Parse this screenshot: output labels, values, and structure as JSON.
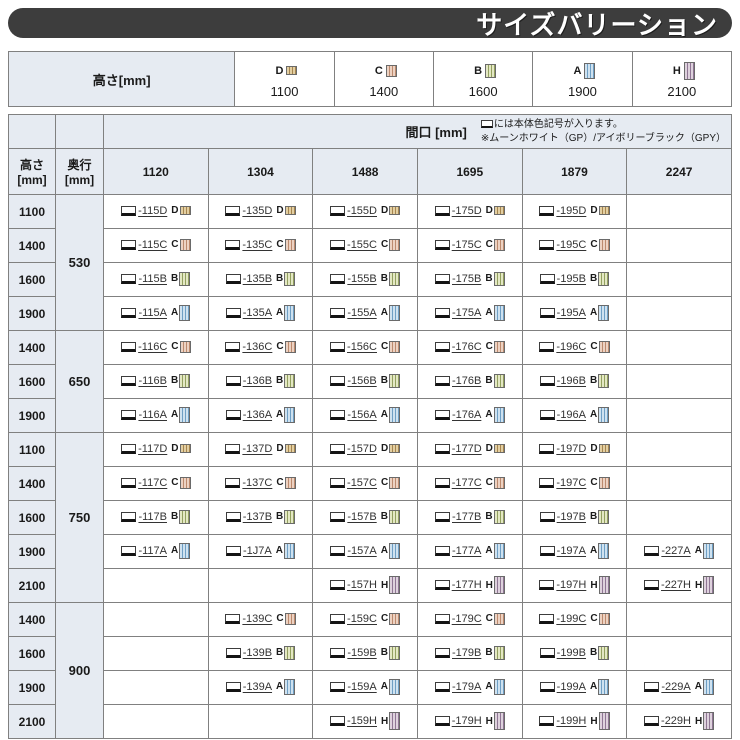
{
  "banner": {
    "title": "サイズバリーション"
  },
  "legend": {
    "label": "高さ[mm]",
    "items": [
      {
        "letter": "D",
        "value": "1100"
      },
      {
        "letter": "C",
        "value": "1400"
      },
      {
        "letter": "B",
        "value": "1600"
      },
      {
        "letter": "A",
        "value": "1900"
      },
      {
        "letter": "H",
        "value": "2100"
      }
    ]
  },
  "icon_colors": {
    "D": {
      "base": "#e3cfa2",
      "stripe": "#a5854f"
    },
    "C": {
      "base": "#edd2c2",
      "stripe": "#bc8a6e"
    },
    "B": {
      "base": "#e4e8c4",
      "stripe": "#93a060"
    },
    "A": {
      "base": "#cfe2f0",
      "stripe": "#6f9fc4"
    },
    "H": {
      "base": "#ded2dd",
      "stripe": "#8f7694"
    }
  },
  "main_table": {
    "maguchi_label": "間口 [mm]",
    "note_line1": "には本体色記号が入ります。",
    "note_line2": "※ムーンホワイト（GP）/アイボリーブラック（GPY）",
    "col_height": "高さ[mm]",
    "col_depth": "奥行[mm]",
    "widths": [
      "1120",
      "1304",
      "1488",
      "1695",
      "1879",
      "2247"
    ],
    "groups": [
      {
        "depth": "530",
        "rows": [
          {
            "height": "1100",
            "type": "D",
            "models": [
              "-115D",
              "-135D",
              "-155D",
              "-175D",
              "-195D",
              null
            ]
          },
          {
            "height": "1400",
            "type": "C",
            "models": [
              "-115C",
              "-135C",
              "-155C",
              "-175C",
              "-195C",
              null
            ]
          },
          {
            "height": "1600",
            "type": "B",
            "models": [
              "-115B",
              "-135B",
              "-155B",
              "-175B",
              "-195B",
              null
            ]
          },
          {
            "height": "1900",
            "type": "A",
            "models": [
              "-115A",
              "-135A",
              "-155A",
              "-175A",
              "-195A",
              null
            ]
          }
        ]
      },
      {
        "depth": "650",
        "rows": [
          {
            "height": "1400",
            "type": "C",
            "models": [
              "-116C",
              "-136C",
              "-156C",
              "-176C",
              "-196C",
              null
            ]
          },
          {
            "height": "1600",
            "type": "B",
            "models": [
              "-116B",
              "-136B",
              "-156B",
              "-176B",
              "-196B",
              null
            ]
          },
          {
            "height": "1900",
            "type": "A",
            "models": [
              "-116A",
              "-136A",
              "-156A",
              "-176A",
              "-196A",
              null
            ]
          }
        ]
      },
      {
        "depth": "750",
        "rows": [
          {
            "height": "1100",
            "type": "D",
            "models": [
              "-117D",
              "-137D",
              "-157D",
              "-177D",
              "-197D",
              null
            ]
          },
          {
            "height": "1400",
            "type": "C",
            "models": [
              "-117C",
              "-137C",
              "-157C",
              "-177C",
              "-197C",
              null
            ]
          },
          {
            "height": "1600",
            "type": "B",
            "models": [
              "-117B",
              "-137B",
              "-157B",
              "-177B",
              "-197B",
              null
            ]
          },
          {
            "height": "1900",
            "type": "A",
            "models": [
              "-117A",
              "-1J7A",
              "-157A",
              "-177A",
              "-197A",
              "-227A"
            ]
          },
          {
            "height": "2100",
            "type": "H",
            "models": [
              null,
              null,
              "-157H",
              "-177H",
              "-197H",
              "-227H"
            ]
          }
        ]
      },
      {
        "depth": "900",
        "rows": [
          {
            "height": "1400",
            "type": "C",
            "models": [
              null,
              "-139C",
              "-159C",
              "-179C",
              "-199C",
              null
            ]
          },
          {
            "height": "1600",
            "type": "B",
            "models": [
              null,
              "-139B",
              "-159B",
              "-179B",
              "-199B",
              null
            ]
          },
          {
            "height": "1900",
            "type": "A",
            "models": [
              null,
              "-139A",
              "-159A",
              "-179A",
              "-199A",
              "-229A"
            ]
          },
          {
            "height": "2100",
            "type": "H",
            "models": [
              null,
              null,
              "-159H",
              "-179H",
              "-199H",
              "-229H"
            ]
          }
        ]
      }
    ]
  }
}
